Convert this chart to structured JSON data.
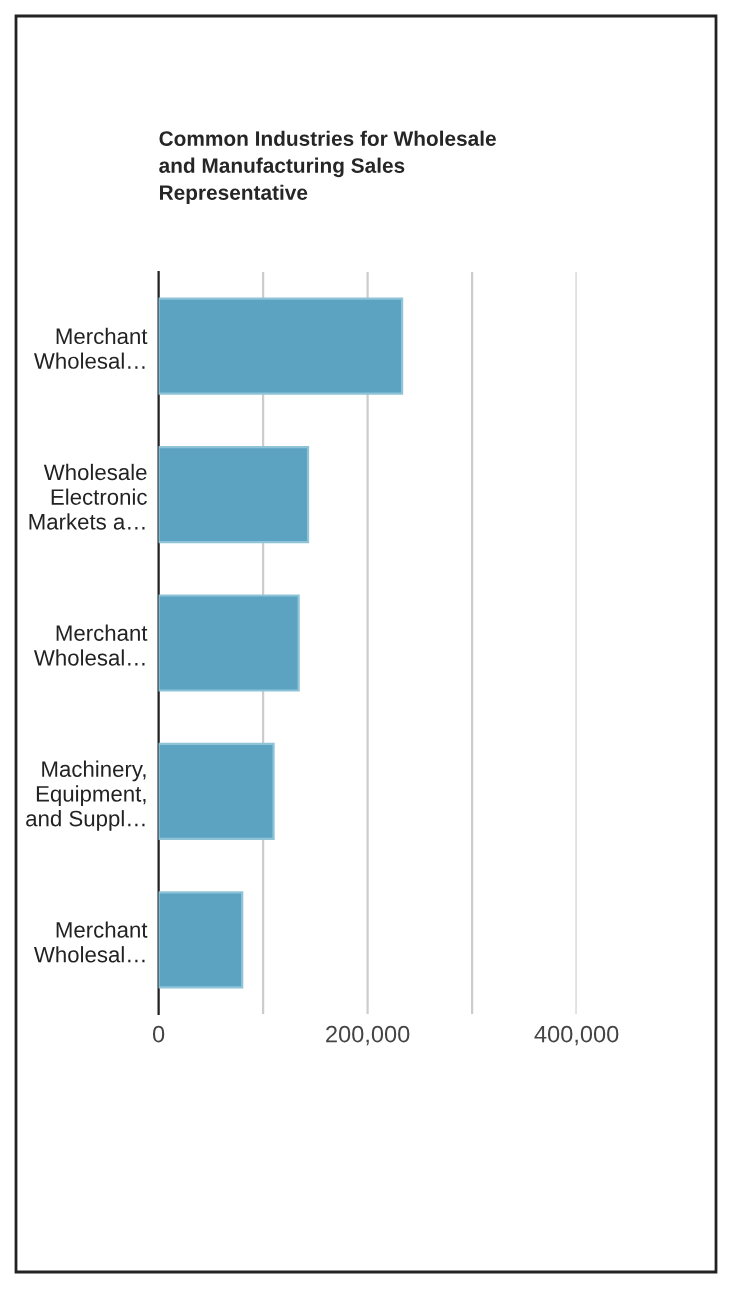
{
  "chart_data": {
    "type": "bar",
    "orientation": "horizontal",
    "title": "Common Industries for Wholesale\nand Manufacturing Sales\nRepresentative",
    "categories": [
      "Merchant\nWholesal…",
      "Wholesale\nElectronic\nMarkets a…",
      "Merchant\nWholesal…",
      "Machinery,\nEquipment,\nand Suppl…",
      "Merchant\nWholesal…"
    ],
    "values": [
      233000,
      143000,
      134000,
      110000,
      80000
    ],
    "color": "#5ba3c0",
    "xlim": [
      0,
      400000
    ],
    "xticks": [
      0,
      {
        "value": 100000,
        "label": null
      },
      {
        "value": 200000,
        "label": "200,000"
      },
      {
        "value": 300000,
        "label": null
      },
      {
        "value": 400000,
        "label": "400,000"
      }
    ],
    "grid": "x",
    "legend": false
  }
}
